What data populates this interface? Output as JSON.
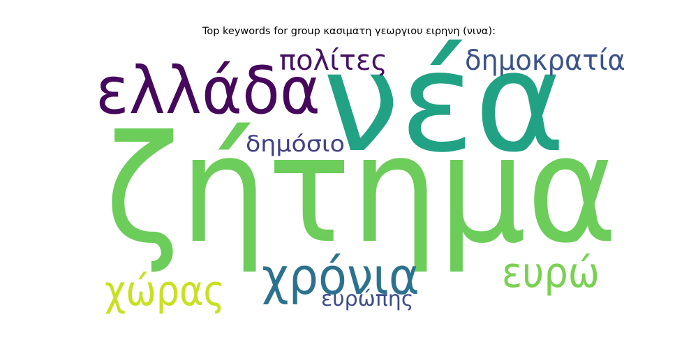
{
  "chart_data": {
    "type": "wordcloud",
    "title": "Top keywords for group κασιματη γεωργιου ειρηνη (νινα):",
    "words": [
      {
        "text": "ζήτημα",
        "rank": 1,
        "color": "#6ccd5a"
      },
      {
        "text": "νέα",
        "rank": 2,
        "color": "#22a285"
      },
      {
        "text": "ελλάδα",
        "rank": 3,
        "color": "#46085c"
      },
      {
        "text": "χρόνια",
        "rank": 4,
        "color": "#2c728e"
      },
      {
        "text": "ευρώ",
        "rank": 5,
        "color": "#7ad151"
      },
      {
        "text": "χώρας",
        "rank": 6,
        "color": "#c8e020"
      },
      {
        "text": "δημοκρατία",
        "rank": 7,
        "color": "#3b528b"
      },
      {
        "text": "πολίτες",
        "rank": 8,
        "color": "#471164"
      },
      {
        "text": "δημόσιο",
        "rank": 9,
        "color": "#424086"
      },
      {
        "text": "ευρώπης",
        "rank": 10,
        "color": "#3e4c8a"
      }
    ]
  }
}
